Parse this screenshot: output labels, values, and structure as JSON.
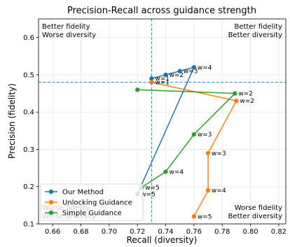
{
  "chart_data": {
    "type": "line",
    "title": "Precision-Recall across guidance strength",
    "xlabel": "Recall (diversity)",
    "ylabel": "Precision (fidelity)",
    "xlim": [
      0.65,
      0.825
    ],
    "ylim": [
      0.1,
      0.65
    ],
    "xticks": [
      "0.66",
      "0.68",
      "0.70",
      "0.72",
      "0.74",
      "0.76",
      "0.78",
      "0.80",
      "0.82"
    ],
    "yticks": [
      "0.1",
      "0.2",
      "0.3",
      "0.4",
      "0.5",
      "0.6"
    ],
    "grid": true,
    "legend_position": "lower-left",
    "reference_lines": {
      "x": 0.73,
      "y": 0.48,
      "color": "#1f77b4"
    },
    "corner_labels": {
      "top_left": [
        "Better fidelity",
        "Worse diversity"
      ],
      "top_right": [
        "Better fidelity",
        "Better diversity"
      ],
      "bottom_left": [
        "Worse fidelity",
        "Worse diversity"
      ],
      "bottom_right": [
        "Worse fidelity",
        "Better diversity"
      ]
    },
    "series": [
      {
        "name": "Our Method",
        "color": "#1f77b4",
        "points": [
          {
            "x": 0.72,
            "y": 0.18,
            "label": "w=5"
          },
          {
            "x": 0.76,
            "y": 0.52,
            "label": "w=4"
          },
          {
            "x": 0.75,
            "y": 0.51,
            "label": "w=3"
          },
          {
            "x": 0.74,
            "y": 0.5,
            "label": "w=2"
          },
          {
            "x": 0.73,
            "y": 0.49,
            "label": "w=1"
          }
        ]
      },
      {
        "name": "Unlocking Guidance",
        "color": "#ff7f0e",
        "points": [
          {
            "x": 0.73,
            "y": 0.48,
            "label": "w=1"
          },
          {
            "x": 0.79,
            "y": 0.43,
            "label": "w=2"
          },
          {
            "x": 0.77,
            "y": 0.29,
            "label": "w=3"
          },
          {
            "x": 0.77,
            "y": 0.19,
            "label": "w=4"
          },
          {
            "x": 0.76,
            "y": 0.12,
            "label": "w=5"
          }
        ]
      },
      {
        "name": "Simple Guidance",
        "color": "#2ca02c",
        "points": [
          {
            "x": 0.72,
            "y": 0.46,
            "label": ""
          },
          {
            "x": 0.789,
            "y": 0.45,
            "label": "w=2"
          },
          {
            "x": 0.76,
            "y": 0.34,
            "label": "w=3"
          },
          {
            "x": 0.74,
            "y": 0.24,
            "label": "w=4"
          },
          {
            "x": 0.723,
            "y": 0.198,
            "label": "w=5"
          }
        ]
      }
    ]
  }
}
